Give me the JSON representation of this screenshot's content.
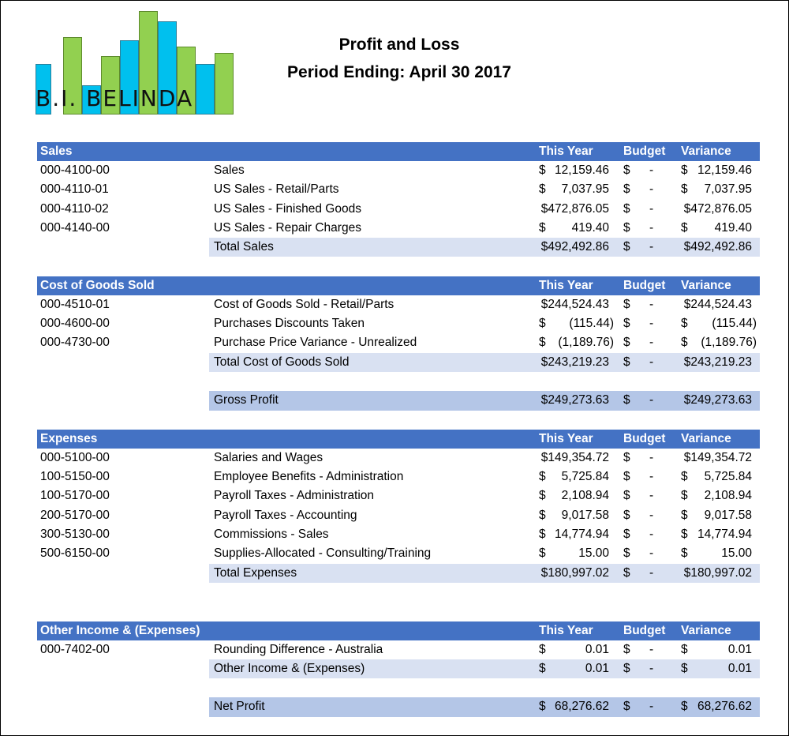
{
  "logo": {
    "text": "B.I. BELINDA",
    "colors": {
      "blue": "#00c0ee",
      "green": "#92d050"
    }
  },
  "report": {
    "title": "Profit and Loss",
    "period": "Period Ending:  April 30 2017"
  },
  "columns": {
    "this_year": "This Year",
    "budget": "Budget",
    "variance": "Variance"
  },
  "colors": {
    "header": "#4472c4",
    "total_band": "#d9e1f2",
    "highlight_band": "#b4c6e7"
  },
  "sections": {
    "sales": {
      "title": "Sales",
      "rows": [
        {
          "acct": "000-4100-00",
          "desc": "Sales",
          "ty": "12,159.46",
          "budget": "-",
          "var": "12,159.46"
        },
        {
          "acct": "000-4110-01",
          "desc": "US Sales - Retail/Parts",
          "ty": "7,037.95",
          "budget": "-",
          "var": "7,037.95"
        },
        {
          "acct": "000-4110-02",
          "desc": "US Sales - Finished Goods",
          "ty": "$472,876.05",
          "budget": "-",
          "var": "$472,876.05"
        },
        {
          "acct": "000-4140-00",
          "desc": "US Sales - Repair Charges",
          "ty": "419.40",
          "budget": "-",
          "var": "419.40"
        }
      ],
      "total": {
        "desc": "Total Sales",
        "ty": "$492,492.86",
        "budget": "-",
        "var": "$492,492.86"
      }
    },
    "cogs": {
      "title": "Cost of Goods Sold",
      "rows": [
        {
          "acct": "000-4510-01",
          "desc": "Cost of Goods Sold - Retail/Parts",
          "ty": "$244,524.43",
          "budget": "-",
          "var": "$244,524.43"
        },
        {
          "acct": "000-4600-00",
          "desc": "Purchases Discounts Taken",
          "ty": "(115.44)",
          "budget": "-",
          "var": "(115.44)"
        },
        {
          "acct": "000-4730-00",
          "desc": "Purchase Price Variance - Unrealized",
          "ty": "(1,189.76)",
          "budget": "-",
          "var": "(1,189.76)"
        }
      ],
      "total": {
        "desc": "Total Cost of Goods Sold",
        "ty": "$243,219.23",
        "budget": "-",
        "var": "$243,219.23"
      }
    },
    "gross_profit": {
      "desc": "Gross Profit",
      "ty": "$249,273.63",
      "budget": "-",
      "var": "$249,273.63"
    },
    "expenses": {
      "title": "Expenses",
      "rows": [
        {
          "acct": "000-5100-00",
          "desc": "Salaries and Wages",
          "ty": "$149,354.72",
          "budget": "-",
          "var": "$149,354.72"
        },
        {
          "acct": "100-5150-00",
          "desc": "Employee Benefits - Administration",
          "ty": "5,725.84",
          "budget": "-",
          "var": "5,725.84"
        },
        {
          "acct": "100-5170-00",
          "desc": "Payroll Taxes - Administration",
          "ty": "2,108.94",
          "budget": "-",
          "var": "2,108.94"
        },
        {
          "acct": "200-5170-00",
          "desc": "Payroll Taxes - Accounting",
          "ty": "9,017.58",
          "budget": "-",
          "var": "9,017.58"
        },
        {
          "acct": "300-5130-00",
          "desc": "Commissions - Sales",
          "ty": "14,774.94",
          "budget": "-",
          "var": "14,774.94"
        },
        {
          "acct": "500-6150-00",
          "desc": "Supplies-Allocated - Consulting/Training",
          "ty": "15.00",
          "budget": "-",
          "var": "15.00"
        }
      ],
      "total": {
        "desc": "Total Expenses",
        "ty": "$180,997.02",
        "budget": "-",
        "var": "$180,997.02"
      }
    },
    "other": {
      "title": "Other Income & (Expenses)",
      "rows": [
        {
          "acct": "000-7402-00",
          "desc": "Rounding Difference - Australia",
          "ty": "0.01",
          "budget": "-",
          "var": "0.01"
        }
      ],
      "total": {
        "desc": "Other Income & (Expenses)",
        "ty": "0.01",
        "budget": "-",
        "var": "0.01"
      }
    },
    "net_profit": {
      "desc": "Net Profit",
      "ty": "68,276.62",
      "budget": "-",
      "var": "68,276.62"
    }
  },
  "currency_symbol": "$"
}
